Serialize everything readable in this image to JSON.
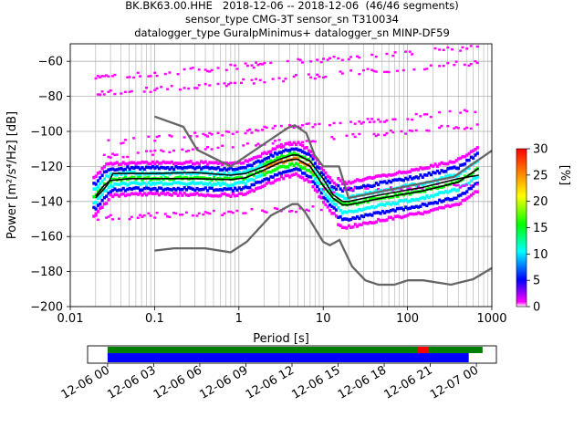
{
  "header": {
    "title_line_1": "BK.BK63.00.HHE   2018-12-06 -- 2018-12-06  (46/46 segments)",
    "title_line_2": "sensor_type CMG-3T sensor_sn T310034",
    "title_line_3": "datalogger_type GuralpMinimus+ datalogger_sn MINP-DF59"
  },
  "chart_data": [
    {
      "type": "heatmap",
      "subtype": "probabilistic-power-spectral-density",
      "xlabel": "Period [s]",
      "ylabel": "Power [m²/s⁴/Hz] [dB]",
      "xscale": "log",
      "xlim": [
        0.01,
        1000
      ],
      "ylim": [
        -200,
        -50
      ],
      "x_ticks": [
        0.01,
        0.1,
        1,
        10,
        100,
        1000
      ],
      "x_tick_labels": [
        "0.01",
        "0.1",
        "1",
        "10",
        "100",
        "1000"
      ],
      "y_ticks": [
        -200,
        -180,
        -160,
        -140,
        -120,
        -100,
        -80,
        -60
      ],
      "y_tick_labels": [
        "−200",
        "−180",
        "−160",
        "−140",
        "−120",
        "−100",
        "−80",
        "−60"
      ],
      "grid": true,
      "colorbar": {
        "label": "[%]",
        "range": [
          0,
          30
        ],
        "ticks": [
          0,
          5,
          10,
          15,
          20,
          25,
          30
        ],
        "tick_labels": [
          "0",
          "5",
          "10",
          "15",
          "20",
          "25",
          "30"
        ],
        "colors": [
          "#ffffff",
          "#ff00ff",
          "#0000ff",
          "#00ffff",
          "#00ff00",
          "#ffff00",
          "#ff7f00",
          "#ff0000"
        ]
      },
      "series": [
        {
          "role": "noise-model-high",
          "color": "#666666",
          "x": [
            0.1,
            0.22,
            0.32,
            0.8,
            3.8,
            4.6,
            6.3,
            7.9,
            10,
            15.4,
            20,
            354,
            1000
          ],
          "y": [
            -91.5,
            -97.4,
            -110.5,
            -120,
            -98,
            -96.5,
            -101,
            -113.5,
            -120,
            -120,
            -138,
            -126,
            -111
          ]
        },
        {
          "role": "noise-model-low",
          "color": "#666666",
          "x": [
            0.1,
            0.17,
            0.4,
            0.8,
            1.24,
            2.4,
            4.3,
            5,
            6,
            10,
            12,
            15.6,
            21.9,
            31.6,
            45,
            70,
            101,
            154,
            328,
            600,
            1000
          ],
          "y": [
            -168,
            -166.7,
            -166.7,
            -169,
            -163,
            -148,
            -141.5,
            -141.5,
            -145.5,
            -163,
            -165,
            -162,
            -177,
            -185,
            -187.5,
            -187.5,
            -185,
            -185,
            -187.5,
            -184.4,
            -178
          ]
        },
        {
          "role": "mean",
          "color": "#000000",
          "x": [
            0.02,
            0.025,
            0.028,
            0.032,
            0.05,
            0.1,
            0.3,
            0.8,
            1.2,
            2,
            3,
            4.3,
            5,
            7,
            10,
            13,
            17,
            20,
            50,
            150,
            400,
            700
          ],
          "y": [
            -138,
            -133,
            -130,
            -124,
            -124,
            -124,
            -123.5,
            -125,
            -124,
            -120,
            -116,
            -113.5,
            -113.5,
            -117,
            -127,
            -136,
            -140,
            -140,
            -136,
            -132,
            -127,
            -125
          ]
        },
        {
          "role": "mode",
          "color": "#000000",
          "x": [
            0.02,
            0.025,
            0.03,
            0.05,
            0.1,
            0.3,
            0.8,
            1.2,
            2,
            3,
            4.3,
            5,
            7,
            10,
            13,
            17,
            20,
            50,
            150,
            400,
            700
          ],
          "y": [
            -137,
            -131,
            -128,
            -127,
            -127,
            -127,
            -127.5,
            -126.5,
            -122,
            -118,
            -116,
            -116,
            -120,
            -131,
            -138,
            -142,
            -142,
            -138,
            -134,
            -129,
            -121
          ]
        }
      ]
    },
    {
      "type": "timeline",
      "subtype": "data-availability",
      "x_tick_labels": [
        "12-06 00",
        "12-06 03",
        "12-06 06",
        "12-06 09",
        "12-06 12",
        "12-06 15",
        "12-06 18",
        "12-06 21",
        "12-07 00"
      ],
      "x_range_hours": [
        -1.3,
        25.3
      ],
      "tracks": [
        {
          "role": "ppsd-coverage",
          "color": "#008000",
          "start_hours": 0,
          "end_hours": 24.4
        },
        {
          "role": "gap",
          "color": "#ff0000",
          "start_hours": 20.2,
          "end_hours": 20.9
        },
        {
          "role": "data-coverage",
          "color": "#0000ff",
          "start_hours": 0,
          "end_hours": 23.5
        }
      ]
    }
  ]
}
